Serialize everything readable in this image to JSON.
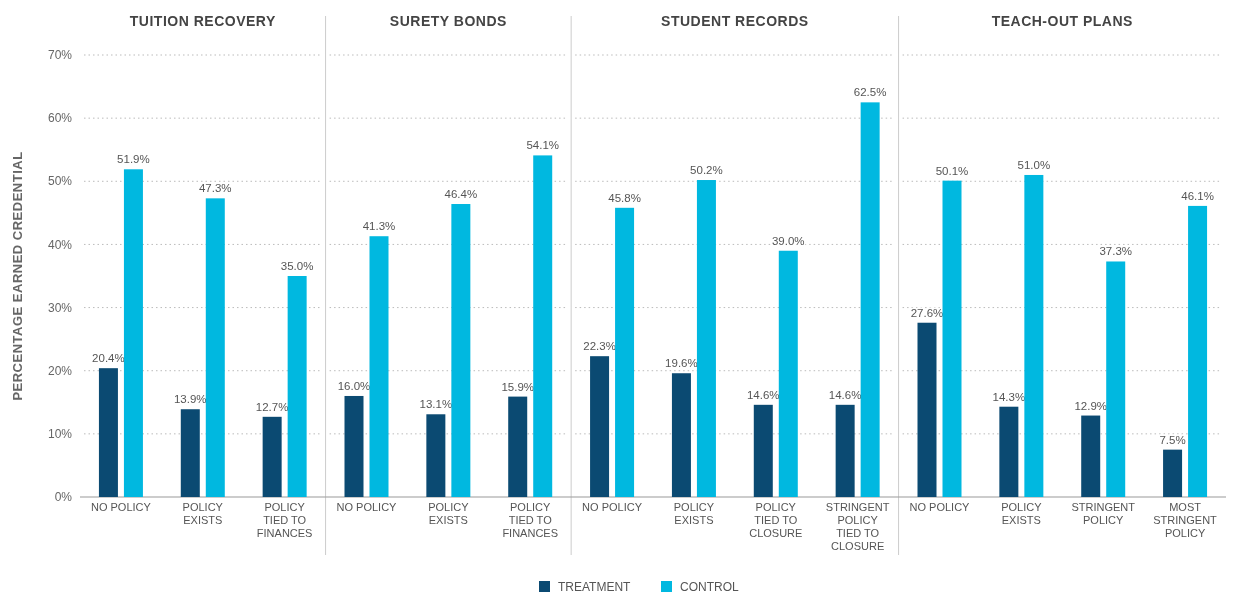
{
  "chart_data": [
    {
      "type": "bar",
      "title": "TUITION RECOVERY",
      "ylabel": "PERCENTAGE EARNED CREDENTIAL",
      "categories": [
        "NO POLICY",
        "POLICY EXISTS",
        "POLICY TIED TO FINANCES"
      ],
      "series": [
        {
          "name": "TREATMENT",
          "color": "#0b4a72",
          "values": [
            20.4,
            13.9,
            12.7
          ],
          "value_labels": [
            "20.4%",
            "13.9%",
            "12.7%"
          ]
        },
        {
          "name": "CONTROL",
          "color": "#00b8e0",
          "values": [
            51.9,
            47.3,
            35.0
          ],
          "value_labels": [
            "51.9%",
            "47.3%",
            "35.0%"
          ]
        }
      ],
      "ylim": [
        0,
        70
      ],
      "yticks": [
        {
          "value": 0,
          "label": "0%"
        },
        {
          "value": 10,
          "label": "10%"
        },
        {
          "value": 20,
          "label": "20%"
        },
        {
          "value": 30,
          "label": "30%"
        },
        {
          "value": 40,
          "label": "40%"
        },
        {
          "value": 50,
          "label": "50%"
        },
        {
          "value": 60,
          "label": "60%"
        },
        {
          "value": 70,
          "label": "70%"
        }
      ],
      "grid": "y",
      "legend": "bottom"
    },
    {
      "type": "bar",
      "title": "SURETY BONDS",
      "categories": [
        "NO POLICY",
        "POLICY EXISTS",
        "POLICY TIED TO FINANCES"
      ],
      "series": [
        {
          "color": "#0b4a72",
          "values": [
            16.0,
            13.1,
            15.9
          ],
          "value_labels": [
            "16.0%",
            "13.1%",
            "15.9%"
          ]
        },
        {
          "color": "#00b8e0",
          "values": [
            41.3,
            46.4,
            54.1
          ],
          "value_labels": [
            "41.3%",
            "46.4%",
            "54.1%"
          ]
        }
      ],
      "ylim": [
        0,
        70
      ],
      "yticks": [
        0,
        10,
        20,
        30,
        40,
        50,
        60,
        70
      ],
      "grid": "y",
      "tick_labels": "x"
    },
    {
      "type": "bar",
      "title": "STUDENT RECORDS",
      "categories": [
        "NO POLICY",
        "POLICY EXISTS",
        "POLICY TIED TO CLOSURE",
        "STRINGENT POLICY TIED TO CLOSURE"
      ],
      "series": [
        {
          "color": "#0b4a72",
          "values": [
            22.3,
            19.6,
            14.6,
            14.6
          ],
          "value_labels": [
            "22.3%",
            "19.6%",
            "14.6%",
            "14.6%"
          ]
        },
        {
          "color": "#00b8e0",
          "values": [
            45.8,
            50.2,
            39.0,
            62.5
          ],
          "value_labels": [
            "45.8%",
            "50.2%",
            "39.0%",
            "62.5%"
          ]
        }
      ],
      "ylim": [
        0,
        70
      ],
      "yticks": [
        0,
        10,
        20,
        30,
        40,
        50,
        60,
        70
      ],
      "grid": "y",
      "tick_labels": "x"
    },
    {
      "type": "bar",
      "title": "TEACH-OUT PLANS",
      "categories": [
        "NO POLICY",
        "POLICY EXISTS",
        "STRINGENT POLICY",
        "MOST STRINGENT POLICY"
      ],
      "series": [
        {
          "color": "#0b4a72",
          "values": [
            27.6,
            14.3,
            12.9,
            7.5
          ],
          "value_labels": [
            "27.6%",
            "14.3%",
            "12.9%",
            "7.5%"
          ]
        },
        {
          "color": "#00b8e0",
          "values": [
            50.1,
            51.0,
            37.3,
            46.1
          ],
          "value_labels": [
            "50.1%",
            "51.0%",
            "37.3%",
            "46.1%"
          ]
        }
      ],
      "ylim": [
        0,
        70
      ],
      "yticks": [
        0,
        10,
        20,
        30,
        40,
        50,
        60,
        70
      ],
      "grid": "y",
      "tick_labels": "x"
    }
  ]
}
